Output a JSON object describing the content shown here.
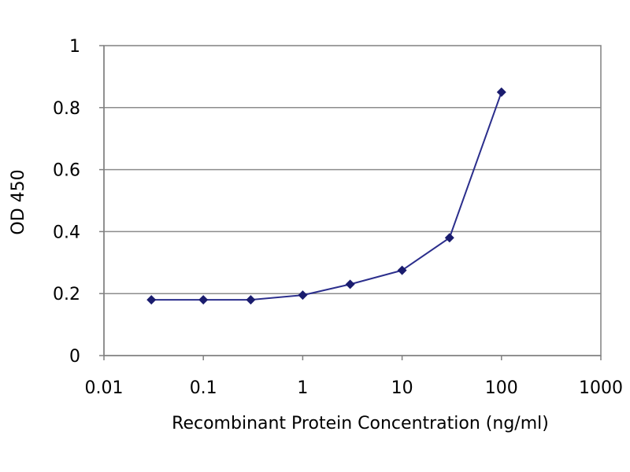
{
  "chart_data": {
    "type": "line",
    "title": "",
    "xlabel": "Recombinant Protein Concentration (ng/ml)",
    "ylabel": "OD 450",
    "x_scale": "log",
    "xlim": [
      0.01,
      1000
    ],
    "ylim": [
      0,
      1
    ],
    "x_ticks": [
      "0.01",
      "0.1",
      "1",
      "10",
      "100",
      "1000"
    ],
    "y_ticks": [
      "0",
      "0.2",
      "0.4",
      "0.6",
      "0.8",
      "1"
    ],
    "grid": "horizontal",
    "legend": "none",
    "colors": {
      "line": "#2b2e8c",
      "marker": "#1a1c6e",
      "grid": "#8c8c8c",
      "axis": "#808080"
    },
    "series": [
      {
        "x": [
          0.03,
          0.1,
          0.3,
          1,
          3,
          10,
          30,
          100
        ],
        "y": [
          0.18,
          0.18,
          0.18,
          0.195,
          0.23,
          0.275,
          0.38,
          0.85
        ]
      }
    ]
  }
}
